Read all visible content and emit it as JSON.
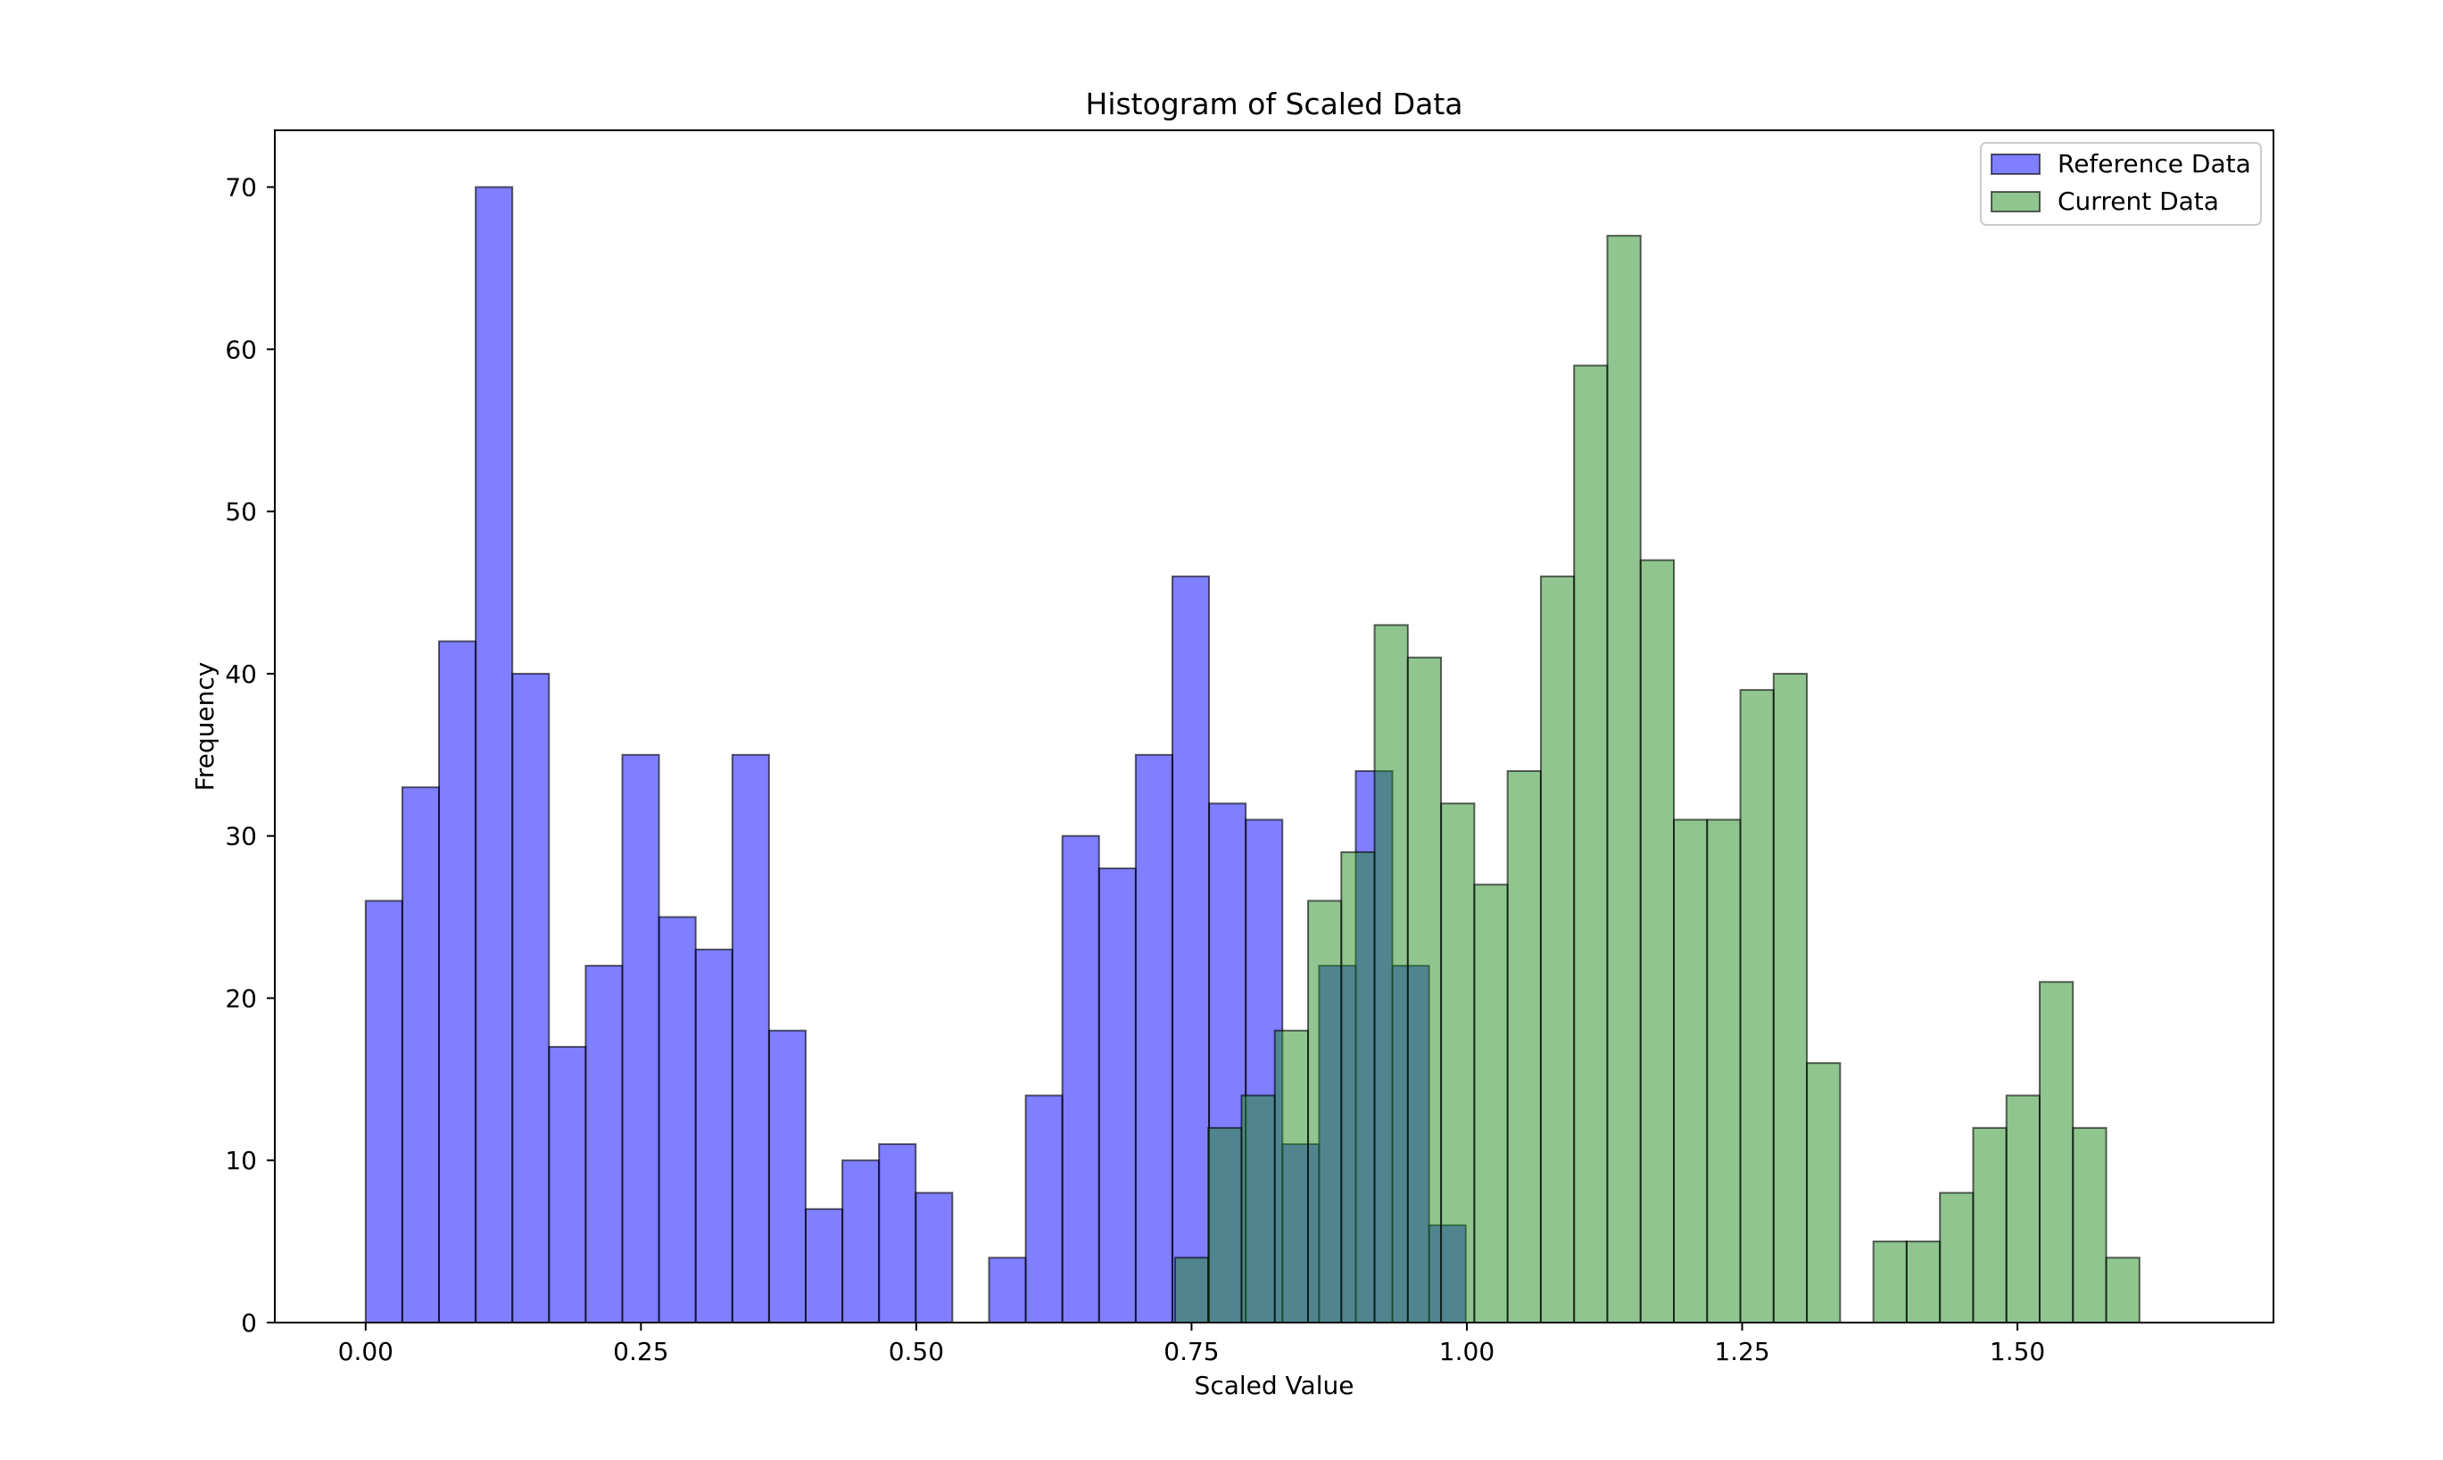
{
  "chart_data": {
    "type": "bar",
    "title": "Histogram of Scaled Data",
    "xlabel": "Scaled Value",
    "ylabel": "Frequency",
    "xlim": [
      -0.0825,
      1.7325
    ],
    "ylim": [
      0,
      73.5
    ],
    "xticks": [
      0.0,
      0.25,
      0.5,
      0.75,
      1.0,
      1.25,
      1.5
    ],
    "xtick_labels": [
      "0.00",
      "0.25",
      "0.50",
      "0.75",
      "1.00",
      "1.25",
      "1.50"
    ],
    "yticks": [
      0,
      10,
      20,
      30,
      40,
      50,
      60,
      70
    ],
    "ytick_labels": [
      "0",
      "10",
      "20",
      "30",
      "40",
      "50",
      "60",
      "70"
    ],
    "grid": false,
    "legend_position": "top-right",
    "series": [
      {
        "name": "Reference Data",
        "color": "#0000ff",
        "alpha": 0.5,
        "edge_color": "#000000",
        "bin_start": 0.0,
        "bin_width": 0.0333,
        "values": [
          26,
          33,
          42,
          70,
          40,
          17,
          22,
          35,
          25,
          23,
          35,
          18,
          7,
          10,
          11,
          8,
          0,
          4,
          14,
          30,
          28,
          35,
          46,
          32,
          31,
          11,
          22,
          34,
          22,
          6
        ]
      },
      {
        "name": "Current Data",
        "color": "#228b22",
        "alpha": 0.5,
        "edge_color": "#000000",
        "bin_start": 0.735,
        "bin_width": 0.0302,
        "values": [
          4,
          12,
          14,
          18,
          26,
          29,
          43,
          41,
          32,
          27,
          34,
          46,
          59,
          67,
          47,
          31,
          31,
          39,
          40,
          16,
          0,
          5,
          5,
          8,
          12,
          14,
          21,
          12,
          4
        ]
      }
    ]
  }
}
